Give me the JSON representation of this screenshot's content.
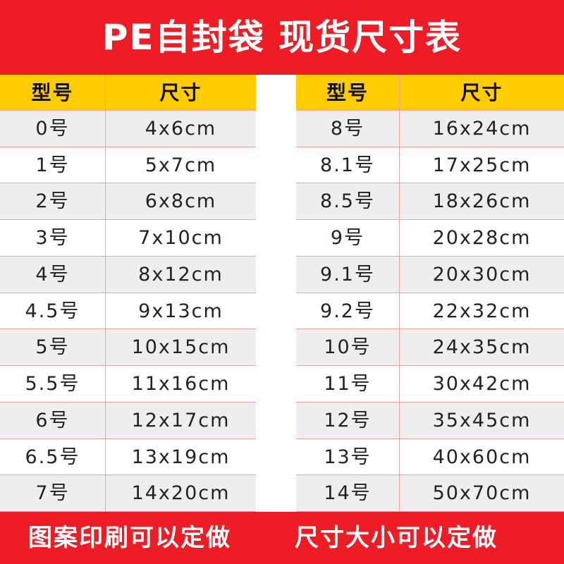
{
  "header": {
    "title": "PE自封袋 现货尺寸表"
  },
  "left_table": {
    "columns": [
      "型号",
      "尺寸"
    ],
    "rows": [
      [
        "0号",
        "4x6cm"
      ],
      [
        "1号",
        "5x7cm"
      ],
      [
        "2号",
        "6x8cm"
      ],
      [
        "3号",
        "7x10cm"
      ],
      [
        "4号",
        "8x12cm"
      ],
      [
        "4.5号",
        "9x13cm"
      ],
      [
        "5号",
        "10x15cm"
      ],
      [
        "5.5号",
        "11x16cm"
      ],
      [
        "6号",
        "12x17cm"
      ],
      [
        "6.5号",
        "13x19cm"
      ],
      [
        "7号",
        "14x20cm"
      ]
    ]
  },
  "right_table": {
    "columns": [
      "型号",
      "尺寸"
    ],
    "rows": [
      [
        "8号",
        "16x24cm"
      ],
      [
        "8.1号",
        "17x25cm"
      ],
      [
        "8.5号",
        "18x26cm"
      ],
      [
        "9号",
        "20x28cm"
      ],
      [
        "9.1号",
        "20x30cm"
      ],
      [
        "9.2号",
        "22x32cm"
      ],
      [
        "10号",
        "24x35cm"
      ],
      [
        "11号",
        "30x42cm"
      ],
      [
        "12号",
        "35x45cm"
      ],
      [
        "13号",
        "40x60cm"
      ],
      [
        "14号",
        "50x70cm"
      ]
    ]
  },
  "footer": {
    "left": "图案印刷可以定做",
    "right": "尺寸大小可以定做"
  }
}
